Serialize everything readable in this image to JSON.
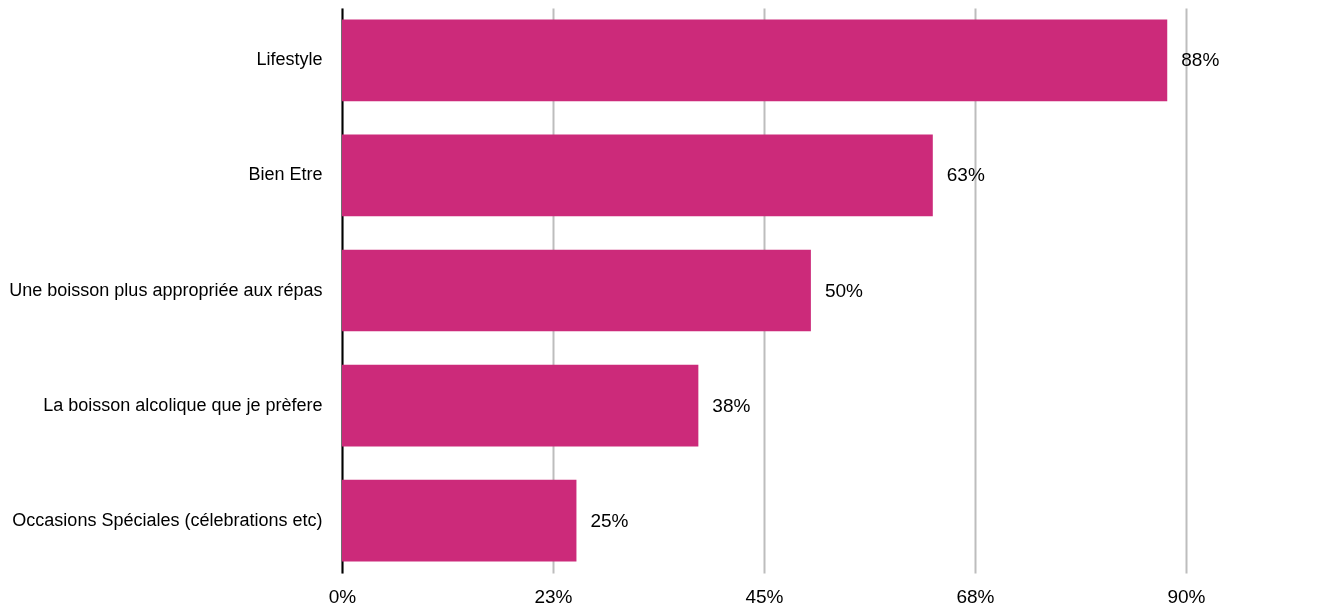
{
  "chart_data": {
    "type": "bar",
    "orientation": "horizontal",
    "categories": [
      "Lifestyle",
      "Bien Etre",
      "Une boisson plus appropriée aux répas",
      "La boisson alcolique que je prèfere",
      "Occasions Spéciales (célebrations etc)"
    ],
    "values": [
      88,
      63,
      50,
      38,
      25
    ],
    "value_labels": [
      "88%",
      "63%",
      "50%",
      "38%",
      "25%"
    ],
    "color": "#cc2a7a",
    "xlim": [
      0,
      90
    ],
    "xticks": [
      {
        "value": 0,
        "label": "0%"
      },
      {
        "value": 22.5,
        "label": "23%"
      },
      {
        "value": 45,
        "label": "45%"
      },
      {
        "value": 67.5,
        "label": "68%"
      },
      {
        "value": 90,
        "label": "90%"
      }
    ],
    "grid": "x"
  }
}
